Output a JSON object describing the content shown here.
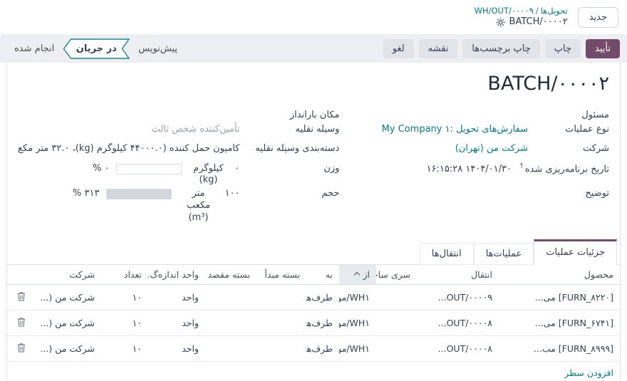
{
  "colors": {
    "primary": "#714B67",
    "link": "#017E84"
  },
  "header": {
    "new_button_label": "جدید",
    "breadcrumb_parent": "تحویل‌ها",
    "breadcrumb_separator": "/",
    "breadcrumb_ref": "WH/OUT/۰۰۰۰۹",
    "breadcrumb_current": "BATCH/۰۰۰۰۲"
  },
  "statusbar": {
    "buttons": {
      "validate": "تأیید",
      "print": "چاپ",
      "print_labels": "چاپ برچسب‌ها",
      "map": "نقشه",
      "cancel": "لغو"
    },
    "steps": [
      {
        "label": "پیش‌نویس",
        "active": false
      },
      {
        "label": "در جریان",
        "active": true
      },
      {
        "label": "انجام شده",
        "active": false
      }
    ]
  },
  "form": {
    "title": "BATCH/۰۰۰۰۲",
    "fields": {
      "responsible": {
        "label": "مسئول",
        "value": ""
      },
      "operation_type": {
        "label": "نوع عملیات",
        "value": "My Company ۱: سفارش‌های تحویل"
      },
      "company": {
        "label": "شرکت",
        "value": "شرکت من (تهران)"
      },
      "scheduled_date": {
        "label": "تاریخ برنامه‌ریزی شده",
        "help": "؟",
        "value": "۱۴۰۴/۰۱/۳۰ ۱۶:۱۵:۲۸"
      },
      "description": {
        "label": "توضیح",
        "value": ""
      },
      "dock_location": {
        "label": "مکان بارانداز",
        "value": ""
      },
      "vehicle": {
        "label": "وسیله نقلیه",
        "placeholder": "تأمین‌کننده شخص ثالث"
      },
      "vehicle_category": {
        "label": "دسته‌بندی وسیله نقلیه",
        "value": "کامیون حمل کننده (۴۴۰۰۰.۰ کیلوگرم (kg)، ۳۲.۰ متر مکع"
      },
      "weight": {
        "label": "وزن",
        "value": "۰",
        "unit": "کیلوگرم (kg)",
        "percent": "۰ %",
        "progress": 0
      },
      "volume": {
        "label": "حجم",
        "value": "۱۰۰",
        "unit": "متر مکعب (m³)",
        "percent": "۳۱۳ %",
        "progress": 100
      }
    }
  },
  "tabs": [
    {
      "label": "جزئیات عملیات",
      "active": true
    },
    {
      "label": "عملیات‌ها",
      "active": false
    },
    {
      "label": "انتقال‌ها",
      "active": false
    }
  ],
  "table": {
    "headers": [
      "محصول",
      "انتقال",
      "سری ساخت...",
      "از",
      "به",
      "بسته مبدأ",
      "بسته مقصد",
      "واحد اندازه‌گ...",
      "تعداد",
      "شرکت"
    ],
    "rows": [
      {
        "product": "[FURN_۸۲۲۰] می...",
        "transfer": "...OUT/۰۰۰۰۹",
        "lot": "",
        "from": "WH۱/موجو...",
        "to": "طرف‌های ه...",
        "src_package": "",
        "dest_package": "",
        "uom": "واحد",
        "qty": "۱۰",
        "company": "شرکت من (..."
      },
      {
        "product": "[FURN_۶۷۴۱] می...",
        "transfer": "...OUT/۰۰۰۰۸",
        "lot": "",
        "from": "WH۱/موجو...",
        "to": "طرف‌های ه...",
        "src_package": "",
        "dest_package": "",
        "uom": "واحد",
        "qty": "۱۰",
        "company": "شرکت من (..."
      },
      {
        "product": "[FURN_۸۹۹۹] مب...",
        "transfer": "...OUT/۰۰۰۰۸",
        "lot": "",
        "from": "WH۱/موجو...",
        "to": "طرف‌های ه...",
        "src_package": "",
        "dest_package": "",
        "uom": "واحد",
        "qty": "۱۰",
        "company": "شرکت من (..."
      }
    ],
    "add_line_label": "افزودن سطر"
  }
}
